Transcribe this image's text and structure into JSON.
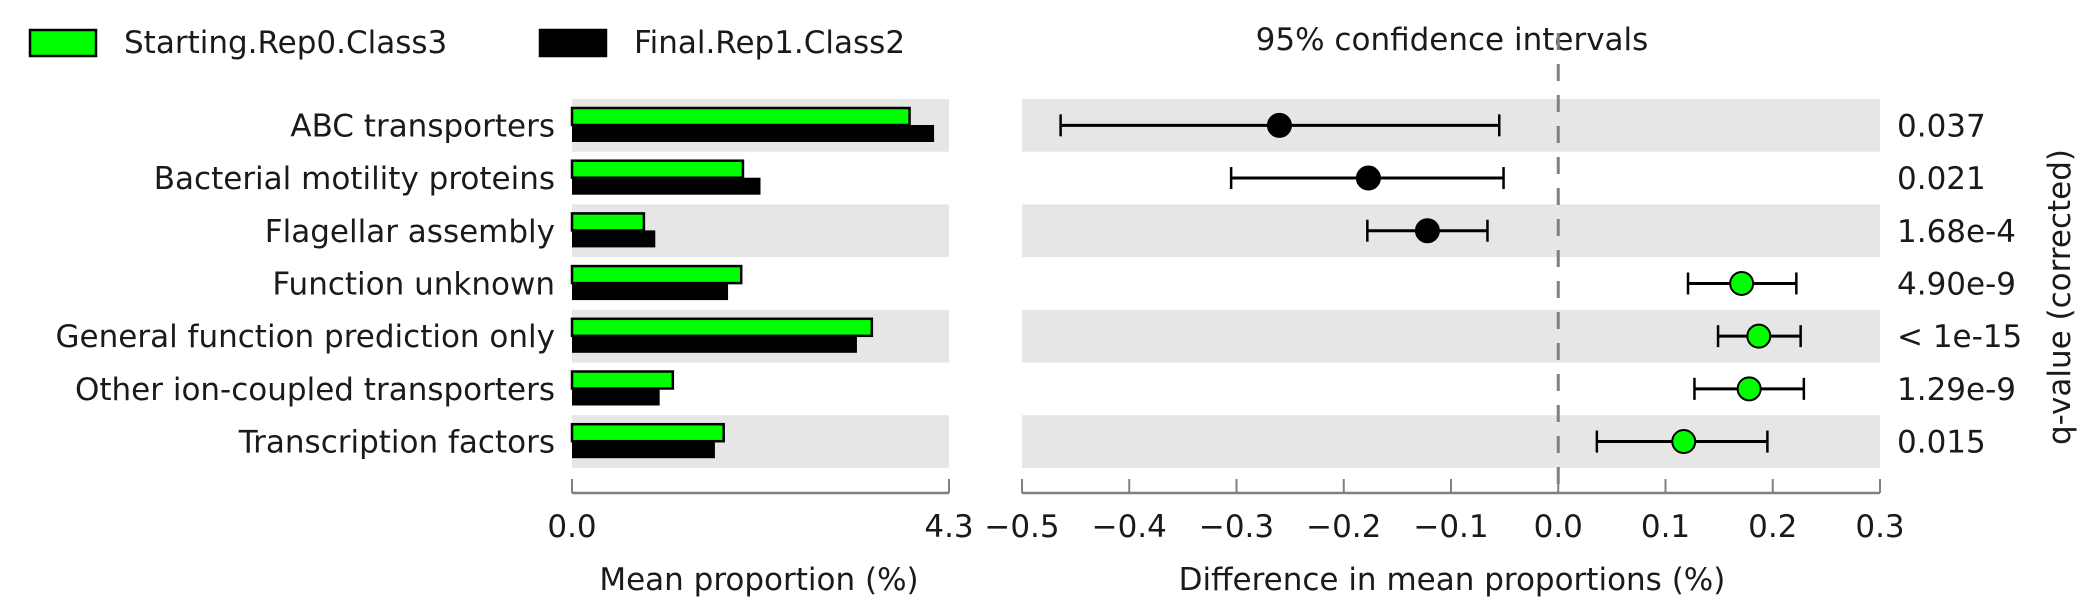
{
  "legend": [
    {
      "name": "Starting.Rep0.Class3",
      "color": "#00ff00"
    },
    {
      "name": "Final.Rep1.Class2",
      "color": "#000000"
    }
  ],
  "ci_title": "95% confidence intervals",
  "chart_data": {
    "type": "bar",
    "categories": [
      "ABC transporters",
      "Bacterial motility proteins",
      "Flagellar assembly",
      "Function unknown",
      "General function prediction only",
      "Other ion-coupled transporters",
      "Transcription factors"
    ],
    "left_panel": {
      "xlabel": "Mean proportion (%)",
      "xlim": [
        0,
        4.3
      ],
      "xticks": [
        "0.0",
        "4.3"
      ],
      "series": [
        {
          "name": "Starting.Rep0.Class3",
          "color": "#00ff00",
          "values": [
            3.85,
            1.95,
            0.82,
            1.93,
            3.42,
            1.15,
            1.73
          ]
        },
        {
          "name": "Final.Rep1.Class2",
          "color": "#000000",
          "values": [
            4.13,
            2.15,
            0.95,
            1.78,
            3.25,
            1.0,
            1.63
          ]
        }
      ]
    },
    "right_panel": {
      "title": "95% confidence intervals",
      "xlabel": "Difference in mean proportions (%)",
      "xlim": [
        -0.5,
        0.3
      ],
      "xticks": [
        "−0.5",
        "−0.4",
        "−0.3",
        "−0.2",
        "−0.1",
        "0.0",
        "0.1",
        "0.2",
        "0.3"
      ],
      "differences": [
        -0.26,
        -0.177,
        -0.122,
        0.171,
        0.187,
        0.178,
        0.117
      ],
      "ci_low": [
        -0.464,
        -0.305,
        -0.178,
        0.121,
        0.149,
        0.127,
        0.036
      ],
      "ci_high": [
        -0.055,
        -0.051,
        -0.066,
        0.222,
        0.226,
        0.229,
        0.195
      ],
      "point_colors": [
        "#000000",
        "#000000",
        "#000000",
        "#00ff00",
        "#00ff00",
        "#00ff00",
        "#00ff00"
      ],
      "q_values": [
        "0.037",
        "0.021",
        "1.68e-4",
        "4.90e-9",
        "< 1e-15",
        "1.29e-9",
        "0.015"
      ],
      "q_label": "q-value (corrected)"
    }
  }
}
